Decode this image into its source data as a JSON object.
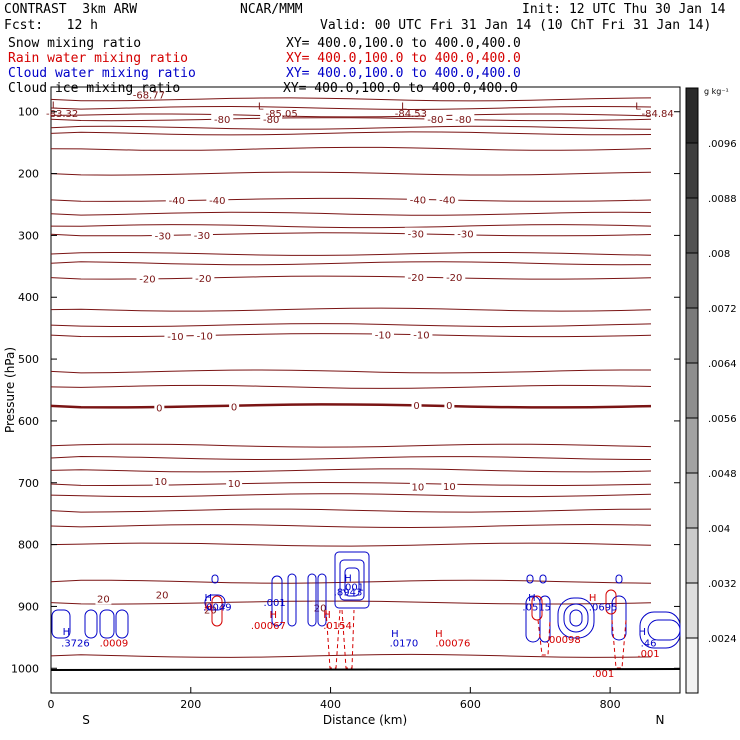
{
  "header": {
    "project": "CONTRAST  3km ARW",
    "org": "NCAR/MMM",
    "init": "Init: 12 UTC Thu 30 Jan 14",
    "fcst": "Fcst:   12 h",
    "valid": "Valid: 00 UTC Fri 31 Jan 14 (10 ChT Fri 31 Jan 14)"
  },
  "fields": [
    {
      "name": "Snow mixing ratio",
      "xy": "XY= 400.0,100.0 to 400.0,400.0",
      "color": "#000000"
    },
    {
      "name": "Rain water mixing ratio",
      "xy": "XY= 400.0,100.0 to 400.0,400.0",
      "color": "#d40000"
    },
    {
      "name": "Cloud water mixing ratio",
      "xy": "XY= 400.0,100.0 to 400.0,400.0",
      "color": "#0000c8"
    },
    {
      "name": "Cloud ice mixing ratio",
      "xy": "XY= 400.0,100.0 to 400.0,400.0",
      "color": "#000000"
    }
  ],
  "chart_data": {
    "type": "contour-cross-section",
    "xlabel": "Distance (km)",
    "ylabel": "Pressure (hPa)",
    "xlim": [
      0,
      900
    ],
    "ylim": [
      1040,
      60
    ],
    "xticks": [
      0,
      200,
      400,
      600,
      800
    ],
    "yticks": [
      100,
      200,
      300,
      400,
      500,
      600,
      700,
      800,
      900,
      1000
    ],
    "direction_left": "S",
    "direction_right": "N",
    "temperature_isotherms": [
      {
        "value": -80,
        "labels": [
          {
            "x": 245,
            "p": 112,
            "text": "-80"
          },
          {
            "x": 315,
            "p": 112,
            "text": "-80"
          },
          {
            "x": 550,
            "p": 112,
            "text": "-80"
          },
          {
            "x": 590,
            "p": 112,
            "text": "-80"
          }
        ]
      },
      {
        "value": -40,
        "labels": [
          {
            "x": 180,
            "p": 243,
            "text": "-40"
          },
          {
            "x": 238,
            "p": 243,
            "text": "-40"
          },
          {
            "x": 525,
            "p": 242,
            "text": "-40"
          },
          {
            "x": 567,
            "p": 242,
            "text": "-40"
          }
        ]
      },
      {
        "value": -30,
        "labels": [
          {
            "x": 160,
            "p": 300,
            "text": "-30"
          },
          {
            "x": 216,
            "p": 299,
            "text": "-30"
          },
          {
            "x": 522,
            "p": 297,
            "text": "-30"
          },
          {
            "x": 593,
            "p": 297,
            "text": "-30"
          }
        ]
      },
      {
        "value": -20,
        "labels": [
          {
            "x": 138,
            "p": 370,
            "text": "-20"
          },
          {
            "x": 218,
            "p": 369,
            "text": "-20"
          },
          {
            "x": 522,
            "p": 367,
            "text": "-20"
          },
          {
            "x": 577,
            "p": 367,
            "text": "-20"
          }
        ]
      },
      {
        "value": -10,
        "labels": [
          {
            "x": 178,
            "p": 463,
            "text": "-10"
          },
          {
            "x": 220,
            "p": 462,
            "text": "-10"
          },
          {
            "x": 475,
            "p": 460,
            "text": "-10"
          },
          {
            "x": 530,
            "p": 460,
            "text": "-10"
          }
        ]
      },
      {
        "value": 0,
        "labels": [
          {
            "x": 155,
            "p": 578,
            "text": "0"
          },
          {
            "x": 262,
            "p": 577,
            "text": "0"
          },
          {
            "x": 523,
            "p": 574,
            "text": "0"
          },
          {
            "x": 570,
            "p": 574,
            "text": "0"
          }
        ]
      },
      {
        "value": 10,
        "labels": [
          {
            "x": 157,
            "p": 697,
            "text": "10"
          },
          {
            "x": 262,
            "p": 700,
            "text": "10"
          },
          {
            "x": 525,
            "p": 706,
            "text": "10"
          },
          {
            "x": 570,
            "p": 705,
            "text": "10"
          }
        ]
      },
      {
        "value": 20,
        "labels": [
          {
            "x": 75,
            "p": 887,
            "text": "20"
          },
          {
            "x": 159,
            "p": 881,
            "text": "20"
          },
          {
            "x": 228,
            "p": 905,
            "text": "20"
          },
          {
            "x": 385,
            "p": 902,
            "text": "20"
          }
        ]
      }
    ],
    "low_centers": [
      {
        "x": 5,
        "p": 88,
        "text": "L"
      },
      {
        "x": 140,
        "p": 72,
        "text": "-68.77"
      },
      {
        "x": 16,
        "p": 102,
        "text": "-83.32"
      },
      {
        "x": 300,
        "p": 90,
        "text": "L"
      },
      {
        "x": 330,
        "p": 102,
        "text": "-85.05"
      },
      {
        "x": 505,
        "p": 90,
        "text": "L"
      },
      {
        "x": 515,
        "p": 102,
        "text": "-84.53"
      },
      {
        "x": 840,
        "p": 90,
        "text": "L"
      },
      {
        "x": 868,
        "p": 102,
        "text": "-84.84"
      }
    ],
    "field_labels": [
      {
        "x": 22,
        "p": 940,
        "text": "H",
        "color": "#0000c8"
      },
      {
        "x": 35,
        "p": 958,
        "text": ".3726",
        "color": "#0000c8"
      },
      {
        "x": 90,
        "p": 958,
        "text": ".0009",
        "color": "#d40000"
      },
      {
        "x": 225,
        "p": 885,
        "text": "H",
        "color": "#0000c8"
      },
      {
        "x": 225,
        "p": 900,
        "text": "H",
        "color": "#d40000"
      },
      {
        "x": 238,
        "p": 900,
        "text": ".0049",
        "color": "#0000c8"
      },
      {
        "x": 318,
        "p": 912,
        "text": "H",
        "color": "#d40000"
      },
      {
        "x": 320,
        "p": 893,
        "text": ".001",
        "color": "#0000c8"
      },
      {
        "x": 311,
        "p": 930,
        "text": ".00067",
        "color": "#d40000"
      },
      {
        "x": 395,
        "p": 912,
        "text": "H",
        "color": "#d40000"
      },
      {
        "x": 410,
        "p": 930,
        "text": ".0154",
        "color": "#d40000"
      },
      {
        "x": 425,
        "p": 853,
        "text": "H",
        "color": "#0000c8"
      },
      {
        "x": 432,
        "p": 868,
        "text": ".001",
        "color": "#0000c8"
      },
      {
        "x": 425,
        "p": 876,
        "text": ".8943",
        "color": "#0000c8"
      },
      {
        "x": 492,
        "p": 943,
        "text": "H",
        "color": "#0000c8"
      },
      {
        "x": 505,
        "p": 958,
        "text": ".0170",
        "color": "#0000c8"
      },
      {
        "x": 555,
        "p": 943,
        "text": "H",
        "color": "#d40000"
      },
      {
        "x": 575,
        "p": 958,
        "text": ".00076",
        "color": "#d40000"
      },
      {
        "x": 688,
        "p": 885,
        "text": "H",
        "color": "#0000c8"
      },
      {
        "x": 695,
        "p": 900,
        "text": ".0515",
        "color": "#0000c8"
      },
      {
        "x": 733,
        "p": 953,
        "text": ".00098",
        "color": "#d40000"
      },
      {
        "x": 775,
        "p": 885,
        "text": "H",
        "color": "#d40000"
      },
      {
        "x": 790,
        "p": 900,
        "text": ".0695",
        "color": "#0000c8"
      },
      {
        "x": 790,
        "p": 1008,
        "text": ".001",
        "color": "#d40000"
      },
      {
        "x": 846,
        "p": 940,
        "text": "H",
        "color": "#0000c8"
      },
      {
        "x": 855,
        "p": 958,
        "text": ".46",
        "color": "#0000c8"
      },
      {
        "x": 855,
        "p": 975,
        "text": ".001",
        "color": "#d40000"
      }
    ],
    "colorbar": {
      "unit": "g kg⁻¹",
      "ticks": [
        ".0096",
        ".0088",
        ".008",
        ".0072",
        ".0064",
        ".0056",
        ".0048",
        ".004",
        ".0032",
        ".0024"
      ],
      "values": [
        0.0096,
        0.0088,
        0.008,
        0.0072,
        0.0064,
        0.0056,
        0.0048,
        0.004,
        0.0032,
        0.0024
      ],
      "colors": [
        "#2a2a2a",
        "#3e3e3e",
        "#525252",
        "#666666",
        "#7a7a7a",
        "#8e8e8e",
        "#a2a2a2",
        "#b6b6b6",
        "#cacaca",
        "#dedede",
        "#f2f2f2"
      ]
    },
    "colors": {
      "isotherm": "#7a1414",
      "rain": "#d40000",
      "cloud_water": "#0000c8",
      "surface": "#000000"
    }
  }
}
